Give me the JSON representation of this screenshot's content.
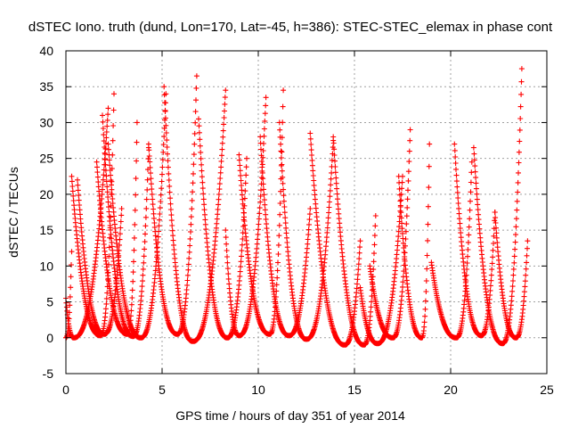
{
  "chart_data": {
    "type": "scatter",
    "title": "dSTEC Iono. truth (dund, Lon=170, Lat=-45, h=386): STEC-STEC_elemax in phase cont",
    "xlabel": "GPS time / hours of day 351 of year 2014",
    "ylabel": "dSTEC  / TECUs",
    "xlim": [
      0,
      25
    ],
    "ylim": [
      -5,
      40
    ],
    "xticks": [
      0,
      5,
      10,
      15,
      20,
      25
    ],
    "yticks": [
      -5,
      0,
      5,
      10,
      15,
      20,
      25,
      30,
      35,
      40
    ],
    "grid": true,
    "marker": "+",
    "color": "#ff0000",
    "arcs": [
      {
        "start": 0.0,
        "min_t": 0.0,
        "end": 0.3,
        "peak_start": 0.0,
        "peak_end": 12.0,
        "min": 0.0
      },
      {
        "start": 0.0,
        "min_t": 0.4,
        "end": 2.2,
        "peak_start": 5.5,
        "peak_end": 32.0,
        "min": 0.0
      },
      {
        "start": 0.3,
        "min_t": 1.8,
        "end": 2.5,
        "peak_start": 22.5,
        "peak_end": 34.0,
        "min": 0.3
      },
      {
        "start": 0.6,
        "min_t": 2.0,
        "end": 2.9,
        "peak_start": 22.0,
        "peak_end": 18.0,
        "min": 0.5
      },
      {
        "start": 1.6,
        "min_t": 3.2,
        "end": 3.7,
        "peak_start": 24.5,
        "peak_end": 30.0,
        "min": 0.5
      },
      {
        "start": 1.9,
        "min_t": 3.5,
        "end": 4.3,
        "peak_start": 31.0,
        "peak_end": 26.5,
        "min": 0.2
      },
      {
        "start": 2.2,
        "min_t": 3.9,
        "end": 5.2,
        "peak_start": 27.0,
        "peak_end": 34.0,
        "min": 0.0
      },
      {
        "start": 4.3,
        "min_t": 5.8,
        "end": 6.8,
        "peak_start": 27.0,
        "peak_end": 36.5,
        "min": 0.5
      },
      {
        "start": 5.1,
        "min_t": 6.6,
        "end": 8.3,
        "peak_start": 35.0,
        "peak_end": 34.5,
        "min": -0.5
      },
      {
        "start": 6.9,
        "min_t": 8.4,
        "end": 9.4,
        "peak_start": 30.5,
        "peak_end": 25.0,
        "min": 0.0
      },
      {
        "start": 8.3,
        "min_t": 9.0,
        "end": 10.4,
        "peak_start": 15.0,
        "peak_end": 33.5,
        "min": 0.3
      },
      {
        "start": 9.0,
        "min_t": 10.6,
        "end": 11.3,
        "peak_start": 25.5,
        "peak_end": 34.5,
        "min": 0.5
      },
      {
        "start": 10.1,
        "min_t": 11.6,
        "end": 12.7,
        "peak_start": 28.0,
        "peak_end": 18.0,
        "min": 0.3
      },
      {
        "start": 11.1,
        "min_t": 12.5,
        "end": 13.9,
        "peak_start": 30.0,
        "peak_end": 27.5,
        "min": -0.2
      },
      {
        "start": 12.7,
        "min_t": 14.5,
        "end": 15.3,
        "peak_start": 28.5,
        "peak_end": 13.5,
        "min": -1.0
      },
      {
        "start": 13.9,
        "min_t": 15.5,
        "end": 16.1,
        "peak_start": 28.0,
        "peak_end": 17.0,
        "min": -1.0
      },
      {
        "start": 15.3,
        "min_t": 16.2,
        "end": 17.5,
        "peak_start": 7.0,
        "peak_end": 22.5,
        "min": -0.8
      },
      {
        "start": 15.8,
        "min_t": 17.0,
        "end": 17.9,
        "peak_start": 10.0,
        "peak_end": 29.0,
        "min": 0.0
      },
      {
        "start": 17.3,
        "min_t": 18.5,
        "end": 18.9,
        "peak_start": 22.5,
        "peak_end": 27.0,
        "min": 0.0
      },
      {
        "start": 19.0,
        "min_t": 20.3,
        "end": 21.1,
        "peak_start": 10.5,
        "peak_end": 24.5,
        "min": 0.0
      },
      {
        "start": 20.2,
        "min_t": 21.6,
        "end": 22.3,
        "peak_start": 27.0,
        "peak_end": 17.5,
        "min": 0.3
      },
      {
        "start": 21.2,
        "min_t": 22.7,
        "end": 23.7,
        "peak_start": 26.5,
        "peak_end": 37.5,
        "min": -0.8
      },
      {
        "start": 22.3,
        "min_t": 23.4,
        "end": 24.0,
        "peak_start": 17.5,
        "peak_end": 13.5,
        "min": 0.0
      }
    ]
  }
}
